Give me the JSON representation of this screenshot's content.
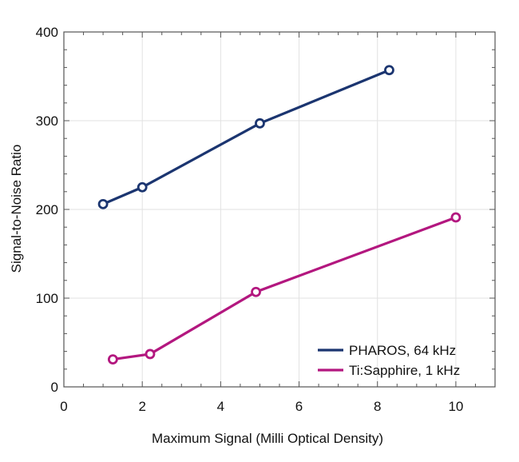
{
  "chart_data": {
    "type": "line",
    "title": "",
    "xlabel": "Maximum Signal (Milli Optical Density)",
    "ylabel": "Signal-to-Noise Ratio",
    "xlim": [
      0,
      11
    ],
    "ylim": [
      0,
      400
    ],
    "xticks": [
      0,
      2,
      4,
      6,
      8,
      10
    ],
    "yticks": [
      0,
      100,
      200,
      300,
      400
    ],
    "grid": true,
    "legend_position": "bottom-right",
    "series": [
      {
        "name": "PHAROS, 64 kHz",
        "color": "#1b3570",
        "marker": "open-circle",
        "x": [
          1.0,
          2.0,
          5.0,
          8.3
        ],
        "y": [
          206,
          225,
          297,
          357
        ]
      },
      {
        "name": "Ti:Sapphire, 1 kHz",
        "color": "#b3177f",
        "marker": "open-circle",
        "x": [
          1.25,
          2.2,
          4.9,
          10.0
        ],
        "y": [
          31,
          37,
          107,
          191
        ]
      }
    ]
  }
}
